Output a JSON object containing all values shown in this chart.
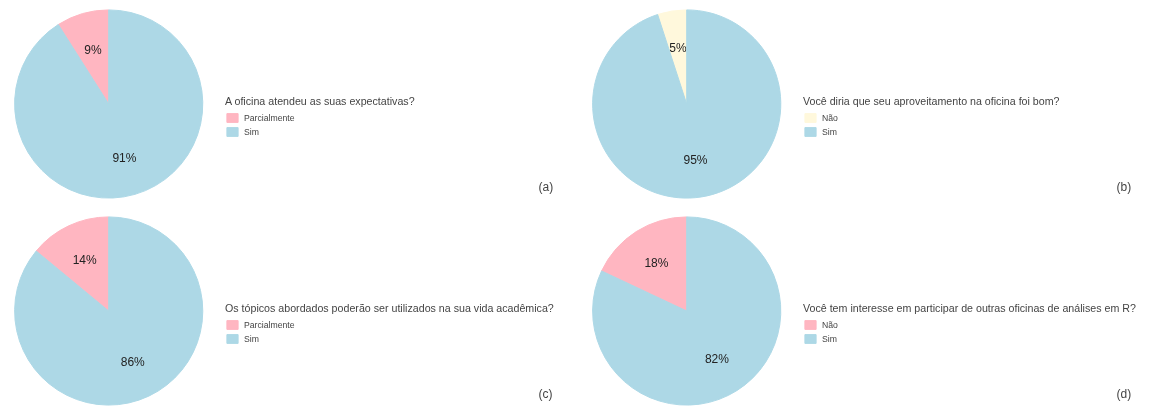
{
  "chart_data": [
    {
      "type": "pie",
      "legend_title": "A oficina atendeu as suas expectativas?",
      "categories": [
        "Parcialmente",
        "Sim"
      ],
      "values": [
        9,
        91
      ],
      "colors": [
        "#ffb6c1",
        "#add8e6"
      ],
      "value_labels": [
        "9%",
        "91%"
      ],
      "legend": "right",
      "annotations": [
        "(a)"
      ]
    },
    {
      "type": "pie",
      "legend_title": "Você diria que seu aproveitamento na oficina foi bom?",
      "categories": [
        "Não",
        "Sim"
      ],
      "values": [
        5,
        95
      ],
      "colors": [
        "#fff8dc",
        "#add8e6"
      ],
      "value_labels": [
        "5%",
        "95%"
      ],
      "legend": "right",
      "annotations": [
        "(b)"
      ]
    },
    {
      "type": "pie",
      "legend_title": "Os tópicos abordados poderão ser utilizados na sua vida acadêmica?",
      "categories": [
        "Parcialmente",
        "Sim"
      ],
      "values": [
        14,
        86
      ],
      "colors": [
        "#ffb6c1",
        "#add8e6"
      ],
      "value_labels": [
        "14%",
        "86%"
      ],
      "legend": "right",
      "annotations": [
        "(c)"
      ]
    },
    {
      "type": "pie",
      "legend_title": "Você tem interesse em participar de outras oficinas de análises em R?",
      "categories": [
        "Não",
        "Sim"
      ],
      "values": [
        18,
        82
      ],
      "colors": [
        "#ffb6c1",
        "#add8e6"
      ],
      "value_labels": [
        "18%",
        "82%"
      ],
      "legend": "right",
      "annotations": [
        "(d)"
      ]
    }
  ]
}
